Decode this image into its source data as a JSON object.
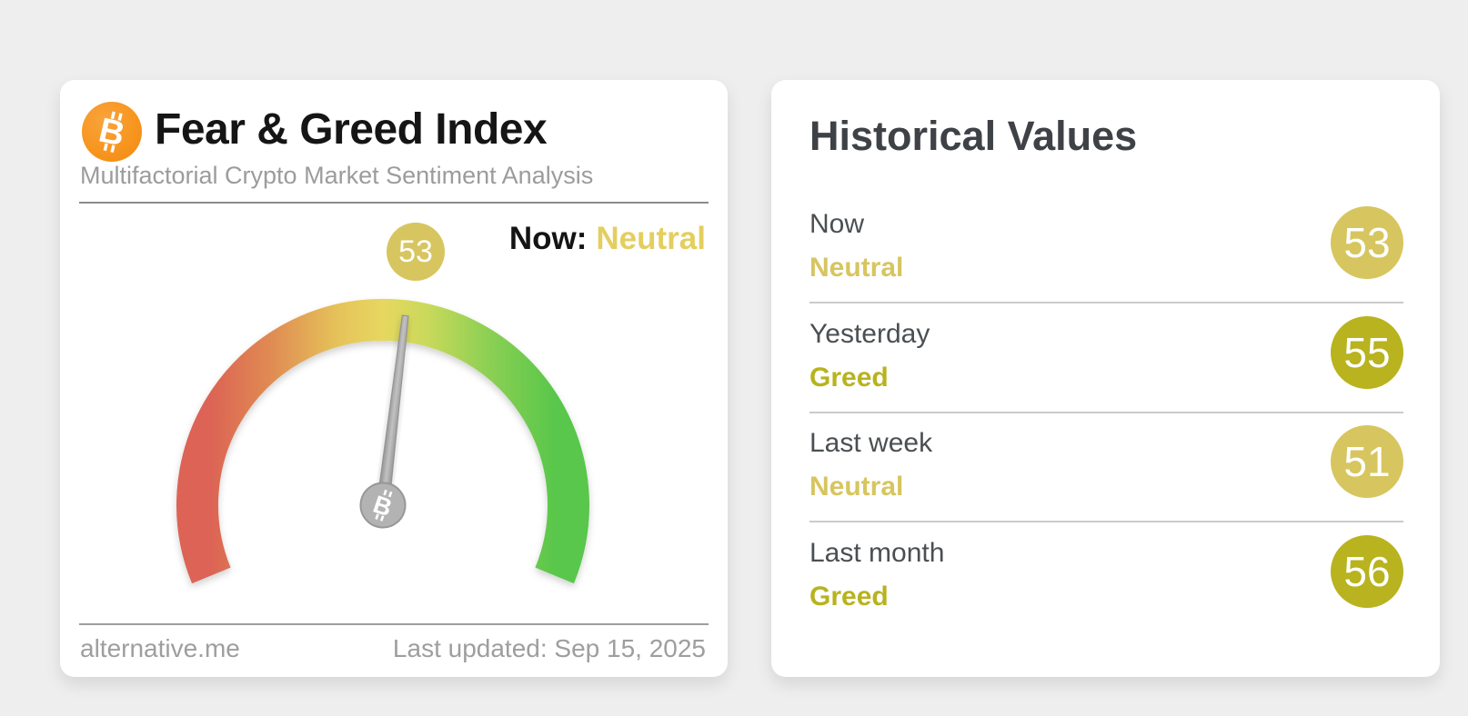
{
  "page": {
    "background_color": "#eeeeef"
  },
  "fear_greed_card": {
    "title": "Fear & Greed Index",
    "subtitle": "Multifactorial Crypto Market Sentiment Analysis",
    "now_label": "Now:",
    "now_classification": "Neutral",
    "value": "53",
    "value_badge_color": "#d7c55f",
    "classification_color": "#e4ce5f",
    "footer_left": "alternative.me",
    "footer_right": "Last updated: Sep 15, 2025",
    "bitcoin_orange": "#f7941d",
    "needle_color": "#9a9a9a"
  },
  "historical_card": {
    "title": "Historical Values",
    "rows": [
      {
        "label": "Now",
        "classification": "Neutral",
        "value": "53",
        "color": "#d7c55f"
      },
      {
        "label": "Yesterday",
        "classification": "Greed",
        "value": "55",
        "color": "#b8b31e"
      },
      {
        "label": "Last week",
        "classification": "Neutral",
        "value": "51",
        "color": "#d7c55f"
      },
      {
        "label": "Last month",
        "classification": "Greed",
        "value": "56",
        "color": "#b8b31e"
      }
    ]
  },
  "chart_data": {
    "type": "gauge",
    "title": "Fear & Greed Index",
    "subtitle": "Multifactorial Crypto Market Sentiment Analysis",
    "value": 53,
    "min": 0,
    "max": 100,
    "classification": "Neutral",
    "arc_sweep_degrees": 225,
    "scale_colors": [
      "#dc6454",
      "#e08a52",
      "#e5c35a",
      "#e7d75f",
      "#c9d95b",
      "#8ed054",
      "#59c74b"
    ],
    "classification_colors": {
      "Neutral": "#d7c55f",
      "Greed": "#b8b31e"
    },
    "source": "alternative.me",
    "last_updated": "Last updated: Sep 15, 2025",
    "historical_series": {
      "categories": [
        "Now",
        "Yesterday",
        "Last week",
        "Last month"
      ],
      "values": [
        53,
        55,
        51,
        56
      ],
      "classifications": [
        "Neutral",
        "Greed",
        "Neutral",
        "Greed"
      ]
    }
  }
}
